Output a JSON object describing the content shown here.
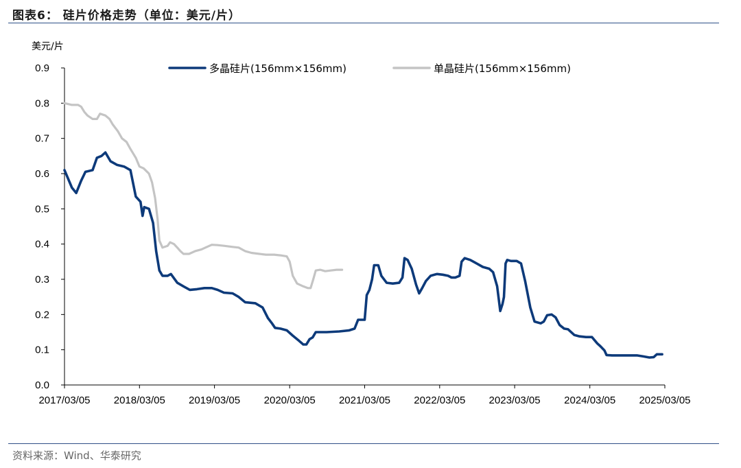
{
  "header": {
    "title": "图表6： 硅片价格走势（单位：美元/片）"
  },
  "footer": {
    "source": "资料来源：Wind、华泰研究"
  },
  "chart_data": {
    "type": "line",
    "title": "硅片价格走势",
    "ylabel": "美元/片",
    "xlabel": "",
    "ylim": [
      0.0,
      0.9
    ],
    "yticks": [
      "0.0",
      "0.1",
      "0.2",
      "0.3",
      "0.4",
      "0.5",
      "0.6",
      "0.7",
      "0.8",
      "0.9"
    ],
    "xlim": [
      "2017-03-05",
      "2025-03-05"
    ],
    "xticks": [
      "2017/03/05",
      "2018/03/05",
      "2019/03/05",
      "2020/03/05",
      "2021/03/05",
      "2022/03/05",
      "2023/03/05",
      "2024/03/05",
      "2025/03/05"
    ],
    "legend": "top-center",
    "grid": false,
    "series": [
      {
        "name": "多晶硅片(156mm×156mm)",
        "color": "#0d3a7a",
        "points": [
          [
            "2017-03-05",
            0.61
          ],
          [
            "2017-04-10",
            0.56
          ],
          [
            "2017-05-01",
            0.545
          ],
          [
            "2017-05-25",
            0.58
          ],
          [
            "2017-06-15",
            0.605
          ],
          [
            "2017-07-20",
            0.61
          ],
          [
            "2017-08-10",
            0.645
          ],
          [
            "2017-09-01",
            0.65
          ],
          [
            "2017-09-20",
            0.66
          ],
          [
            "2017-10-15",
            0.635
          ],
          [
            "2017-11-15",
            0.625
          ],
          [
            "2017-12-20",
            0.62
          ],
          [
            "2018-01-20",
            0.61
          ],
          [
            "2018-02-15",
            0.535
          ],
          [
            "2018-03-10",
            0.52
          ],
          [
            "2018-03-20",
            0.48
          ],
          [
            "2018-03-28",
            0.505
          ],
          [
            "2018-04-20",
            0.5
          ],
          [
            "2018-05-10",
            0.46
          ],
          [
            "2018-05-25",
            0.38
          ],
          [
            "2018-06-10",
            0.325
          ],
          [
            "2018-06-25",
            0.31
          ],
          [
            "2018-07-20",
            0.31
          ],
          [
            "2018-08-05",
            0.315
          ],
          [
            "2018-09-05",
            0.29
          ],
          [
            "2018-10-05",
            0.28
          ],
          [
            "2018-11-05",
            0.27
          ],
          [
            "2018-12-10",
            0.272
          ],
          [
            "2019-01-15",
            0.275
          ],
          [
            "2019-02-20",
            0.275
          ],
          [
            "2019-03-20",
            0.27
          ],
          [
            "2019-04-20",
            0.262
          ],
          [
            "2019-06-01",
            0.26
          ],
          [
            "2019-07-01",
            0.25
          ],
          [
            "2019-08-01",
            0.235
          ],
          [
            "2019-09-20",
            0.232
          ],
          [
            "2019-10-25",
            0.22
          ],
          [
            "2019-11-20",
            0.19
          ],
          [
            "2019-12-10",
            0.175
          ],
          [
            "2019-12-25",
            0.162
          ],
          [
            "2020-01-20",
            0.16
          ],
          [
            "2020-02-20",
            0.155
          ],
          [
            "2020-03-20",
            0.14
          ],
          [
            "2020-04-20",
            0.125
          ],
          [
            "2020-05-10",
            0.115
          ],
          [
            "2020-05-25",
            0.115
          ],
          [
            "2020-06-10",
            0.13
          ],
          [
            "2020-06-25",
            0.135
          ],
          [
            "2020-07-10",
            0.15
          ],
          [
            "2020-09-01",
            0.15
          ],
          [
            "2020-11-01",
            0.152
          ],
          [
            "2020-12-20",
            0.155
          ],
          [
            "2021-01-15",
            0.16
          ],
          [
            "2021-02-01",
            0.185
          ],
          [
            "2021-03-05",
            0.185
          ],
          [
            "2021-03-15",
            0.255
          ],
          [
            "2021-03-28",
            0.27
          ],
          [
            "2021-04-10",
            0.3
          ],
          [
            "2021-04-20",
            0.34
          ],
          [
            "2021-05-10",
            0.34
          ],
          [
            "2021-05-25",
            0.31
          ],
          [
            "2021-06-20",
            0.29
          ],
          [
            "2021-07-20",
            0.288
          ],
          [
            "2021-08-20",
            0.29
          ],
          [
            "2021-09-05",
            0.305
          ],
          [
            "2021-09-15",
            0.36
          ],
          [
            "2021-09-30",
            0.355
          ],
          [
            "2021-10-20",
            0.33
          ],
          [
            "2021-11-10",
            0.285
          ],
          [
            "2021-11-25",
            0.26
          ],
          [
            "2021-12-10",
            0.275
          ],
          [
            "2021-12-28",
            0.295
          ],
          [
            "2022-01-20",
            0.31
          ],
          [
            "2022-02-20",
            0.315
          ],
          [
            "2022-03-20",
            0.313
          ],
          [
            "2022-04-15",
            0.31
          ],
          [
            "2022-05-01",
            0.305
          ],
          [
            "2022-05-20",
            0.305
          ],
          [
            "2022-06-10",
            0.31
          ],
          [
            "2022-06-20",
            0.35
          ],
          [
            "2022-07-05",
            0.36
          ],
          [
            "2022-08-01",
            0.355
          ],
          [
            "2022-09-01",
            0.345
          ],
          [
            "2022-10-01",
            0.335
          ],
          [
            "2022-11-01",
            0.33
          ],
          [
            "2022-11-20",
            0.32
          ],
          [
            "2022-12-10",
            0.28
          ],
          [
            "2022-12-25",
            0.21
          ],
          [
            "2023-01-05",
            0.23
          ],
          [
            "2023-01-12",
            0.25
          ],
          [
            "2023-01-20",
            0.345
          ],
          [
            "2023-01-28",
            0.355
          ],
          [
            "2023-02-15",
            0.352
          ],
          [
            "2023-03-15",
            0.352
          ],
          [
            "2023-04-05",
            0.345
          ],
          [
            "2023-04-25",
            0.295
          ],
          [
            "2023-05-20",
            0.22
          ],
          [
            "2023-06-10",
            0.18
          ],
          [
            "2023-07-10",
            0.175
          ],
          [
            "2023-07-25",
            0.18
          ],
          [
            "2023-08-10",
            0.198
          ],
          [
            "2023-09-01",
            0.2
          ],
          [
            "2023-09-20",
            0.192
          ],
          [
            "2023-10-10",
            0.17
          ],
          [
            "2023-11-01",
            0.16
          ],
          [
            "2023-11-20",
            0.158
          ],
          [
            "2023-12-20",
            0.142
          ],
          [
            "2024-01-15",
            0.138
          ],
          [
            "2024-02-15",
            0.136
          ],
          [
            "2024-03-15",
            0.136
          ],
          [
            "2024-04-10",
            0.118
          ],
          [
            "2024-04-25",
            0.11
          ],
          [
            "2024-05-15",
            0.098
          ],
          [
            "2024-05-25",
            0.085
          ],
          [
            "2024-06-20",
            0.084
          ],
          [
            "2024-08-20",
            0.084
          ],
          [
            "2024-10-20",
            0.084
          ],
          [
            "2024-11-20",
            0.081
          ],
          [
            "2024-12-20",
            0.078
          ],
          [
            "2025-01-10",
            0.079
          ],
          [
            "2025-01-25",
            0.087
          ],
          [
            "2025-02-20",
            0.087
          ]
        ]
      },
      {
        "name": "单晶硅片(156mm×156mm)",
        "color": "#c4c4c4",
        "points": [
          [
            "2017-03-05",
            0.8
          ],
          [
            "2017-04-10",
            0.795
          ],
          [
            "2017-05-10",
            0.795
          ],
          [
            "2017-05-25",
            0.79
          ],
          [
            "2017-06-10",
            0.775
          ],
          [
            "2017-06-25",
            0.765
          ],
          [
            "2017-07-20",
            0.755
          ],
          [
            "2017-08-10",
            0.755
          ],
          [
            "2017-08-25",
            0.77
          ],
          [
            "2017-09-20",
            0.765
          ],
          [
            "2017-10-10",
            0.755
          ],
          [
            "2017-10-25",
            0.74
          ],
          [
            "2017-11-20",
            0.72
          ],
          [
            "2017-12-10",
            0.7
          ],
          [
            "2018-01-01",
            0.69
          ],
          [
            "2018-01-20",
            0.67
          ],
          [
            "2018-02-15",
            0.645
          ],
          [
            "2018-03-05",
            0.62
          ],
          [
            "2018-03-25",
            0.615
          ],
          [
            "2018-04-20",
            0.6
          ],
          [
            "2018-05-05",
            0.575
          ],
          [
            "2018-05-20",
            0.53
          ],
          [
            "2018-06-01",
            0.47
          ],
          [
            "2018-06-10",
            0.41
          ],
          [
            "2018-06-25",
            0.39
          ],
          [
            "2018-07-20",
            0.395
          ],
          [
            "2018-08-01",
            0.405
          ],
          [
            "2018-08-20",
            0.4
          ],
          [
            "2018-09-05",
            0.39
          ],
          [
            "2018-09-20",
            0.38
          ],
          [
            "2018-10-05",
            0.372
          ],
          [
            "2018-11-01",
            0.372
          ],
          [
            "2018-12-01",
            0.38
          ],
          [
            "2019-01-01",
            0.385
          ],
          [
            "2019-01-20",
            0.39
          ],
          [
            "2019-02-20",
            0.398
          ],
          [
            "2019-03-20",
            0.397
          ],
          [
            "2019-04-20",
            0.395
          ],
          [
            "2019-06-01",
            0.392
          ],
          [
            "2019-07-01",
            0.39
          ],
          [
            "2019-08-01",
            0.38
          ],
          [
            "2019-09-01",
            0.375
          ],
          [
            "2019-10-10",
            0.372
          ],
          [
            "2019-11-10",
            0.37
          ],
          [
            "2019-12-20",
            0.37
          ],
          [
            "2020-01-20",
            0.368
          ],
          [
            "2020-02-20",
            0.365
          ],
          [
            "2020-03-05",
            0.35
          ],
          [
            "2020-03-20",
            0.31
          ],
          [
            "2020-04-10",
            0.288
          ],
          [
            "2020-05-10",
            0.28
          ],
          [
            "2020-06-01",
            0.275
          ],
          [
            "2020-06-15",
            0.275
          ],
          [
            "2020-06-28",
            0.3
          ],
          [
            "2020-07-10",
            0.325
          ],
          [
            "2020-08-01",
            0.327
          ],
          [
            "2020-08-25",
            0.323
          ],
          [
            "2020-09-20",
            0.325
          ],
          [
            "2020-10-20",
            0.327
          ],
          [
            "2020-11-15",
            0.327
          ]
        ]
      }
    ]
  }
}
